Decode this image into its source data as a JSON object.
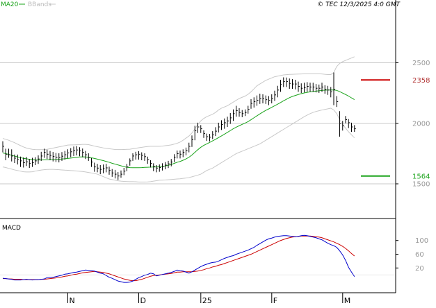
{
  "header": {
    "legend_ma": "MA20",
    "legend_bb": "BBands",
    "credit": "© TEC 12/3/2025 4:0 GMT"
  },
  "colors": {
    "bars": "#000000",
    "ma20": "#1aa31a",
    "bbands": "#c8c8c8",
    "gridline": "#c8c8c8",
    "resistance": "#cc0000",
    "support": "#1aa31a",
    "macd_line": "#0000cc",
    "macd_signal": "#cc0000",
    "axis": "#000000",
    "axis_text": "#999999",
    "resistance_text": "#b03030",
    "support_text": "#1aa31a"
  },
  "chart_data": [
    {
      "type": "ohlc",
      "title": "",
      "y_ticks": [
        1500,
        2000,
        2500
      ],
      "y_tick_labels": [
        "1500",
        "2000",
        "2500"
      ],
      "ylim": [
        1225,
        2950
      ],
      "x_labels": [
        "N",
        "D",
        "25",
        "F",
        "M"
      ],
      "grid": "horizontal",
      "levels": [
        {
          "label": "2358",
          "value": 2358,
          "color": "#cc0000"
        },
        {
          "label": "1564",
          "value": 1564,
          "color": "#1aa31a"
        }
      ],
      "bars": [
        [
          1852,
          1810,
          1760
        ],
        [
          1790,
          1745,
          1695
        ],
        [
          1790,
          1740,
          1715
        ],
        [
          1785,
          1730,
          1685
        ],
        [
          1742,
          1712,
          1672
        ],
        [
          1742,
          1700,
          1660
        ],
        [
          1725,
          1690,
          1640
        ],
        [
          1718,
          1675,
          1635
        ],
        [
          1722,
          1682,
          1648
        ],
        [
          1705,
          1668,
          1632
        ],
        [
          1715,
          1675,
          1640
        ],
        [
          1720,
          1690,
          1655
        ],
        [
          1735,
          1705,
          1665
        ],
        [
          1765,
          1730,
          1690
        ],
        [
          1790,
          1760,
          1715
        ],
        [
          1782,
          1745,
          1705
        ],
        [
          1772,
          1735,
          1695
        ],
        [
          1763,
          1726,
          1685
        ],
        [
          1755,
          1720,
          1680
        ],
        [
          1752,
          1716,
          1677
        ],
        [
          1762,
          1728,
          1690
        ],
        [
          1772,
          1740,
          1700
        ],
        [
          1785,
          1755,
          1712
        ],
        [
          1795,
          1765,
          1720
        ],
        [
          1808,
          1775,
          1730
        ],
        [
          1812,
          1780,
          1735
        ],
        [
          1802,
          1772,
          1728
        ],
        [
          1792,
          1760,
          1720
        ],
        [
          1772,
          1740,
          1705
        ],
        [
          1752,
          1720,
          1690
        ],
        [
          1712,
          1680,
          1640
        ],
        [
          1675,
          1640,
          1600
        ],
        [
          1665,
          1630,
          1595
        ],
        [
          1655,
          1620,
          1580
        ],
        [
          1660,
          1625,
          1588
        ],
        [
          1665,
          1632,
          1595
        ],
        [
          1642,
          1610,
          1575
        ],
        [
          1622,
          1590,
          1558
        ],
        [
          1615,
          1580,
          1545
        ],
        [
          1597,
          1565,
          1532
        ],
        [
          1610,
          1580,
          1550
        ],
        [
          1632,
          1605,
          1572
        ],
        [
          1665,
          1640,
          1605
        ],
        [
          1710,
          1690,
          1650
        ],
        [
          1752,
          1730,
          1690
        ],
        [
          1765,
          1740,
          1700
        ],
        [
          1770,
          1745,
          1700
        ],
        [
          1760,
          1735,
          1695
        ],
        [
          1752,
          1725,
          1690
        ],
        [
          1725,
          1700,
          1665
        ],
        [
          1695,
          1670,
          1635
        ],
        [
          1670,
          1645,
          1605
        ],
        [
          1655,
          1630,
          1595
        ],
        [
          1660,
          1635,
          1600
        ],
        [
          1670,
          1645,
          1610
        ],
        [
          1680,
          1655,
          1620
        ],
        [
          1690,
          1665,
          1630
        ],
        [
          1705,
          1680,
          1645
        ],
        [
          1745,
          1720,
          1680
        ],
        [
          1775,
          1750,
          1710
        ],
        [
          1775,
          1745,
          1710
        ],
        [
          1785,
          1760,
          1720
        ],
        [
          1800,
          1775,
          1735
        ],
        [
          1840,
          1810,
          1760
        ],
        [
          1900,
          1865,
          1805
        ],
        [
          1980,
          1940,
          1860
        ],
        [
          2005,
          1970,
          1920
        ],
        [
          1985,
          1955,
          1920
        ],
        [
          1942,
          1915,
          1880
        ],
        [
          1915,
          1890,
          1855
        ],
        [
          1912,
          1885,
          1850
        ],
        [
          1935,
          1905,
          1870
        ],
        [
          1968,
          1935,
          1895
        ],
        [
          2005,
          1970,
          1925
        ],
        [
          2025,
          1990,
          1945
        ],
        [
          2040,
          2005,
          1955
        ],
        [
          2055,
          2020,
          1970
        ],
        [
          2085,
          2045,
          1995
        ],
        [
          2115,
          2080,
          2020
        ],
        [
          2145,
          2105,
          2055
        ],
        [
          2125,
          2090,
          2055
        ],
        [
          2110,
          2080,
          2050
        ],
        [
          2115,
          2090,
          2060
        ],
        [
          2145,
          2115,
          2080
        ],
        [
          2200,
          2165,
          2120
        ],
        [
          2215,
          2180,
          2130
        ],
        [
          2230,
          2190,
          2145
        ],
        [
          2245,
          2205,
          2160
        ],
        [
          2240,
          2205,
          2165
        ],
        [
          2230,
          2195,
          2160
        ],
        [
          2225,
          2190,
          2150
        ],
        [
          2240,
          2205,
          2165
        ],
        [
          2270,
          2235,
          2185
        ],
        [
          2310,
          2275,
          2215
        ],
        [
          2360,
          2320,
          2260
        ],
        [
          2380,
          2345,
          2300
        ],
        [
          2378,
          2345,
          2300
        ],
        [
          2370,
          2330,
          2285
        ],
        [
          2365,
          2325,
          2285
        ],
        [
          2360,
          2325,
          2280
        ],
        [
          2345,
          2305,
          2260
        ],
        [
          2330,
          2290,
          2250
        ],
        [
          2335,
          2295,
          2255
        ],
        [
          2340,
          2305,
          2260
        ],
        [
          2335,
          2300,
          2260
        ],
        [
          2335,
          2300,
          2260
        ],
        [
          2325,
          2290,
          2255
        ],
        [
          2320,
          2290,
          2250
        ],
        [
          2335,
          2300,
          2260
        ],
        [
          2315,
          2280,
          2245
        ],
        [
          2310,
          2275,
          2235
        ],
        [
          2300,
          2260,
          2215
        ],
        [
          2420,
          2280,
          2150
        ],
        [
          2225,
          2180,
          2135
        ],
        [
          2100,
          2000,
          1890
        ],
        [
          2020,
          1980,
          1940
        ],
        [
          2060,
          2030,
          2000
        ],
        [
          2035,
          2005,
          1960
        ],
        [
          2005,
          1970,
          1930
        ],
        [
          1985,
          1955,
          1930
        ]
      ],
      "ma20": [
        1755,
        1750,
        1743,
        1736,
        1729,
        1723,
        1716,
        1711,
        1707,
        1703,
        1700,
        1698,
        1697,
        1697,
        1698,
        1698,
        1699,
        1700,
        1701,
        1703,
        1705,
        1707,
        1710,
        1713,
        1716,
        1719,
        1722,
        1723,
        1722,
        1720,
        1715,
        1710,
        1704,
        1698,
        1692,
        1685,
        1678,
        1670,
        1663,
        1656,
        1649,
        1642,
        1637,
        1634,
        1633,
        1633,
        1633,
        1634,
        1636,
        1637,
        1638,
        1639,
        1640,
        1641,
        1644,
        1648,
        1653,
        1660,
        1669,
        1678,
        1685,
        1695,
        1706,
        1720,
        1738,
        1760,
        1782,
        1802,
        1818,
        1830,
        1842,
        1855,
        1868,
        1882,
        1896,
        1910,
        1925,
        1940,
        1955,
        1968,
        1980,
        1991,
        2002,
        2014,
        2030,
        2046,
        2062,
        2078,
        2093,
        2107,
        2119,
        2132,
        2145,
        2158,
        2172,
        2186,
        2199,
        2212,
        2222,
        2230,
        2238,
        2245,
        2251,
        2256,
        2260,
        2263,
        2266,
        2269,
        2272,
        2274,
        2275,
        2275,
        2276,
        2272,
        2262,
        2250,
        2238,
        2225,
        2210,
        2196
      ],
      "bb_upper": [
        1875,
        1868,
        1860,
        1850,
        1840,
        1828,
        1816,
        1805,
        1796,
        1790,
        1785,
        1783,
        1782,
        1782,
        1783,
        1785,
        1790,
        1795,
        1800,
        1805,
        1810,
        1815,
        1820,
        1822,
        1822,
        1823,
        1824,
        1826,
        1826,
        1824,
        1818,
        1812,
        1807,
        1802,
        1797,
        1793,
        1790,
        1787,
        1784,
        1783,
        1783,
        1784,
        1785,
        1786,
        1790,
        1794,
        1798,
        1802,
        1805,
        1808,
        1810,
        1810,
        1810,
        1810,
        1812,
        1815,
        1818,
        1822,
        1828,
        1835,
        1845,
        1860,
        1878,
        1895,
        1920,
        1955,
        1990,
        2020,
        2040,
        2055,
        2065,
        2075,
        2090,
        2110,
        2125,
        2135,
        2145,
        2160,
        2175,
        2190,
        2205,
        2215,
        2225,
        2240,
        2260,
        2285,
        2310,
        2325,
        2340,
        2355,
        2365,
        2375,
        2385,
        2390,
        2395,
        2400,
        2402,
        2404,
        2405,
        2406,
        2407,
        2408,
        2409,
        2410,
        2410,
        2410,
        2410,
        2410,
        2408,
        2405,
        2403,
        2403,
        2420,
        2470,
        2495,
        2510,
        2520,
        2530,
        2540,
        2550
      ],
      "bb_lower": [
        1640,
        1635,
        1628,
        1622,
        1615,
        1610,
        1605,
        1600,
        1598,
        1598,
        1600,
        1605,
        1610,
        1614,
        1617,
        1619,
        1620,
        1620,
        1618,
        1617,
        1615,
        1613,
        1612,
        1610,
        1608,
        1606,
        1604,
        1602,
        1598,
        1594,
        1590,
        1585,
        1580,
        1570,
        1560,
        1550,
        1540,
        1535,
        1530,
        1525,
        1522,
        1520,
        1519,
        1518,
        1518,
        1517,
        1515,
        1515,
        1515,
        1516,
        1518,
        1522,
        1526,
        1530,
        1531,
        1532,
        1534,
        1536,
        1538,
        1540,
        1542,
        1545,
        1548,
        1552,
        1558,
        1565,
        1572,
        1580,
        1595,
        1610,
        1620,
        1630,
        1645,
        1660,
        1675,
        1690,
        1705,
        1720,
        1735,
        1750,
        1760,
        1770,
        1780,
        1790,
        1800,
        1810,
        1820,
        1830,
        1845,
        1860,
        1875,
        1890,
        1905,
        1920,
        1935,
        1950,
        1965,
        1980,
        1995,
        2010,
        2025,
        2040,
        2055,
        2068,
        2080,
        2090,
        2098,
        2104,
        2110,
        2115,
        2120,
        2125,
        2110,
        2080,
        2030,
        1990,
        1960,
        1930,
        1905,
        1880
      ]
    },
    {
      "type": "line",
      "title": "MACD",
      "y_ticks": [
        100,
        60,
        20
      ],
      "y_tick_labels": [
        "100",
        "60",
        "20"
      ],
      "ylim": [
        -48,
        158
      ],
      "series": [
        {
          "key": "macd",
          "values": [
            -10,
            -11,
            -12,
            -13,
            -15,
            -15,
            -15,
            -14,
            -13,
            -14,
            -15,
            -14,
            -14,
            -13,
            -12,
            -8,
            -7,
            -7,
            -5,
            -3,
            -1,
            2,
            3,
            5,
            7,
            8,
            10,
            12,
            14,
            13,
            12,
            11,
            8,
            5,
            3,
            -2,
            -7,
            -10,
            -14,
            -18,
            -20,
            -22,
            -22,
            -21,
            -18,
            -13,
            -8,
            -5,
            -1,
            1,
            5,
            3,
            -3,
            -1,
            1,
            3,
            5,
            7,
            10,
            14,
            12,
            11,
            8,
            5,
            9,
            14,
            19,
            24,
            28,
            31,
            34,
            36,
            37,
            40,
            44,
            48,
            51,
            54,
            56,
            60,
            63,
            66,
            69,
            72,
            76,
            80,
            86,
            91,
            96,
            101,
            105,
            107,
            110,
            112,
            113,
            114,
            114,
            113,
            112,
            111,
            112,
            114,
            115,
            114,
            112,
            110,
            108,
            105,
            102,
            97,
            92,
            88,
            85,
            80,
            70,
            58,
            42,
            22,
            8,
            -5
          ]
        },
        {
          "key": "signal",
          "values": [
            -11,
            -11,
            -12,
            -12,
            -13,
            -13,
            -13,
            -14,
            -14,
            -14,
            -14,
            -14,
            -14,
            -13,
            -13,
            -12,
            -11,
            -10,
            -9,
            -7,
            -6,
            -4,
            -3,
            -1,
            1,
            2,
            4,
            6,
            7,
            8,
            9,
            10,
            9,
            8,
            7,
            5,
            3,
            0,
            -3,
            -6,
            -9,
            -12,
            -14,
            -16,
            -17,
            -17,
            -15,
            -13,
            -10,
            -7,
            -4,
            -2,
            -1,
            0,
            1,
            2,
            3,
            4,
            6,
            8,
            8,
            9,
            9,
            9,
            9,
            10,
            11,
            13,
            15,
            18,
            20,
            23,
            25,
            28,
            30,
            33,
            36,
            39,
            42,
            45,
            48,
            51,
            54,
            57,
            60,
            64,
            68,
            72,
            76,
            80,
            84,
            88,
            92,
            96,
            100,
            103,
            106,
            108,
            110,
            111,
            112,
            113,
            113,
            113,
            113,
            112,
            111,
            110,
            108,
            105,
            102,
            99,
            96,
            92,
            88,
            83,
            77,
            70,
            62,
            55
          ]
        }
      ]
    }
  ]
}
